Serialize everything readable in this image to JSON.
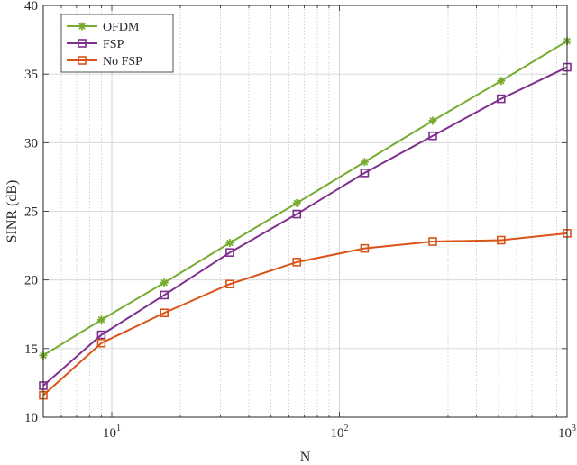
{
  "chart_data": {
    "type": "line",
    "xlabel": "N",
    "ylabel": "SINR (dB)",
    "xscale": "log",
    "xlim": [
      5,
      1000
    ],
    "ylim": [
      10,
      40
    ],
    "grid": "on",
    "legend_placement": "top-left",
    "x_ticks": [
      {
        "base": "10",
        "exp": "1",
        "value": 10
      },
      {
        "base": "10",
        "exp": "2",
        "value": 100
      },
      {
        "base": "10",
        "exp": "3",
        "value": 1000
      }
    ],
    "y_ticks": [
      "10",
      "15",
      "20",
      "25",
      "30",
      "35",
      "40"
    ],
    "x": [
      5,
      9,
      17,
      33,
      65,
      129,
      257,
      513,
      1000
    ],
    "series": [
      {
        "name": "OFDM",
        "color": "#77ac30",
        "marker": "asterisk",
        "values": [
          14.5,
          17.1,
          19.8,
          22.7,
          25.6,
          28.6,
          31.6,
          34.5,
          37.4
        ]
      },
      {
        "name": "FSP",
        "color": "#7e2f8e",
        "marker": "square",
        "values": [
          12.3,
          16.0,
          18.9,
          22.0,
          24.8,
          27.8,
          30.5,
          33.2,
          35.5
        ]
      },
      {
        "name": "No FSP",
        "color": "#d95319",
        "marker": "square",
        "values": [
          11.6,
          15.4,
          17.6,
          19.7,
          21.3,
          22.3,
          22.8,
          22.9,
          23.4
        ]
      }
    ]
  }
}
